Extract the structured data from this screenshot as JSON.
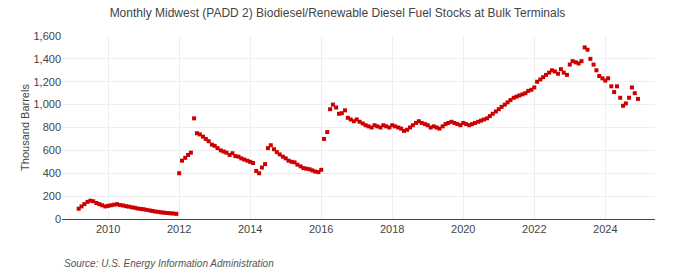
{
  "chart_data": {
    "type": "scatter",
    "title": "Monthly Midwest (PADD 2) Biodiesel/Renewable Diesel Fuel Stocks at Bulk Terminals",
    "ylabel": "Thousand Barrels",
    "annotations": [
      "Source: U.S. Energy Information Administration"
    ],
    "color": "#cc0000",
    "marker": "square",
    "grid": true,
    "ylim": [
      0,
      1600
    ],
    "yticks": [
      0,
      200,
      400,
      600,
      800,
      {
        "value": 1000,
        "label": "1,000"
      },
      {
        "value": 1200,
        "label": "1,200"
      },
      {
        "value": 1400,
        "label": "1,400"
      },
      {
        "value": 1600,
        "label": "1,600"
      }
    ],
    "xlim": [
      2008.7,
      2025.4
    ],
    "xticks": [
      2010,
      2012,
      2014,
      2016,
      2018,
      2020,
      2022,
      2024
    ],
    "x": [
      2009.17,
      2009.25,
      2009.33,
      2009.42,
      2009.5,
      2009.58,
      2009.67,
      2009.75,
      2009.83,
      2009.92,
      2010.0,
      2010.08,
      2010.17,
      2010.25,
      2010.33,
      2010.42,
      2010.5,
      2010.58,
      2010.67,
      2010.75,
      2010.83,
      2010.92,
      2011.0,
      2011.08,
      2011.17,
      2011.25,
      2011.33,
      2011.42,
      2011.5,
      2011.58,
      2011.67,
      2011.75,
      2011.83,
      2011.92,
      2012.0,
      2012.08,
      2012.17,
      2012.25,
      2012.33,
      2012.42,
      2012.5,
      2012.58,
      2012.67,
      2012.75,
      2012.83,
      2012.92,
      2013.0,
      2013.08,
      2013.17,
      2013.25,
      2013.33,
      2013.42,
      2013.5,
      2013.58,
      2013.67,
      2013.75,
      2013.83,
      2013.92,
      2014.0,
      2014.08,
      2014.17,
      2014.25,
      2014.33,
      2014.42,
      2014.5,
      2014.58,
      2014.67,
      2014.75,
      2014.83,
      2014.92,
      2015.0,
      2015.08,
      2015.17,
      2015.25,
      2015.33,
      2015.42,
      2015.5,
      2015.58,
      2015.67,
      2015.75,
      2015.83,
      2015.92,
      2016.0,
      2016.08,
      2016.17,
      2016.25,
      2016.33,
      2016.42,
      2016.5,
      2016.58,
      2016.67,
      2016.75,
      2016.83,
      2016.92,
      2017.0,
      2017.08,
      2017.17,
      2017.25,
      2017.33,
      2017.42,
      2017.5,
      2017.58,
      2017.67,
      2017.75,
      2017.83,
      2017.92,
      2018.0,
      2018.08,
      2018.17,
      2018.25,
      2018.33,
      2018.42,
      2018.5,
      2018.58,
      2018.67,
      2018.75,
      2018.83,
      2018.92,
      2019.0,
      2019.08,
      2019.17,
      2019.25,
      2019.33,
      2019.42,
      2019.5,
      2019.58,
      2019.67,
      2019.75,
      2019.83,
      2019.92,
      2020.0,
      2020.08,
      2020.17,
      2020.25,
      2020.33,
      2020.42,
      2020.5,
      2020.58,
      2020.67,
      2020.75,
      2020.83,
      2020.92,
      2021.0,
      2021.08,
      2021.17,
      2021.25,
      2021.33,
      2021.42,
      2021.5,
      2021.58,
      2021.67,
      2021.75,
      2021.83,
      2021.92,
      2022.0,
      2022.08,
      2022.17,
      2022.25,
      2022.33,
      2022.42,
      2022.5,
      2022.58,
      2022.67,
      2022.75,
      2022.83,
      2022.92,
      2023.0,
      2023.08,
      2023.17,
      2023.25,
      2023.33,
      2023.42,
      2023.5,
      2023.58,
      2023.67,
      2023.75,
      2023.83,
      2023.92,
      2024.0,
      2024.08,
      2024.17,
      2024.25,
      2024.33,
      2024.42,
      2024.5,
      2024.58,
      2024.67,
      2024.75,
      2024.83,
      2024.92
    ],
    "values": [
      90,
      110,
      130,
      150,
      160,
      155,
      140,
      130,
      120,
      110,
      115,
      120,
      125,
      130,
      122,
      118,
      112,
      108,
      102,
      98,
      92,
      88,
      85,
      80,
      75,
      70,
      65,
      62,
      58,
      55,
      52,
      50,
      48,
      45,
      400,
      510,
      535,
      560,
      580,
      880,
      750,
      740,
      720,
      700,
      680,
      650,
      640,
      620,
      600,
      590,
      580,
      560,
      575,
      550,
      545,
      530,
      520,
      510,
      500,
      490,
      420,
      400,
      450,
      480,
      620,
      645,
      610,
      585,
      565,
      545,
      530,
      510,
      500,
      495,
      475,
      460,
      445,
      440,
      435,
      425,
      415,
      410,
      430,
      700,
      760,
      960,
      1000,
      975,
      920,
      925,
      950,
      885,
      870,
      855,
      870,
      850,
      835,
      820,
      810,
      800,
      820,
      810,
      800,
      820,
      810,
      800,
      820,
      810,
      800,
      790,
      770,
      780,
      800,
      820,
      840,
      855,
      840,
      830,
      820,
      800,
      810,
      800,
      790,
      810,
      830,
      840,
      850,
      840,
      830,
      820,
      840,
      830,
      820,
      830,
      840,
      850,
      860,
      870,
      880,
      900,
      920,
      940,
      960,
      980,
      1000,
      1020,
      1040,
      1060,
      1070,
      1080,
      1090,
      1100,
      1120,
      1130,
      1150,
      1200,
      1220,
      1240,
      1260,
      1280,
      1300,
      1290,
      1270,
      1310,
      1280,
      1260,
      1350,
      1380,
      1370,
      1360,
      1380,
      1500,
      1480,
      1400,
      1350,
      1300,
      1250,
      1230,
      1210,
      1230,
      1160,
      1110,
      1160,
      1060,
      990,
      1010,
      1060,
      1150,
      1100,
      1050
    ]
  }
}
